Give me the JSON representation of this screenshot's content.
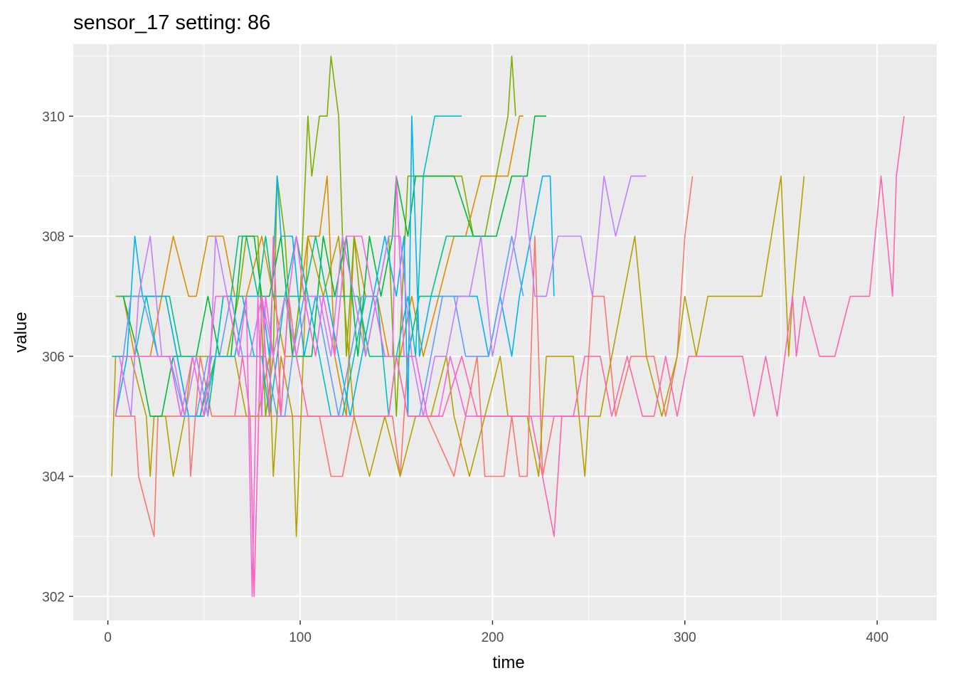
{
  "chart_data": {
    "type": "line",
    "title": "sensor_17 setting: 86",
    "xlabel": "time",
    "ylabel": "value",
    "xlim": [
      -18,
      431
    ],
    "ylim": [
      301.6,
      311.2
    ],
    "x_ticks": [
      0,
      100,
      200,
      300,
      400
    ],
    "y_ticks": [
      302,
      304,
      306,
      308,
      310
    ],
    "x_tick_labels": [
      "0",
      "100",
      "200",
      "300",
      "400"
    ],
    "y_tick_labels": [
      "302",
      "304",
      "306",
      "308",
      "310"
    ],
    "grid": true,
    "panel_background": "#ebebeb",
    "grid_color": "#ffffff",
    "legend": "none",
    "series": [
      {
        "color": "#F8766D",
        "x": [
          4,
          14,
          16,
          24,
          26,
          30,
          34,
          42,
          43,
          48,
          54,
          60,
          72,
          80,
          90,
          96,
          110,
          116,
          122,
          128,
          134,
          140,
          148,
          152,
          156,
          160,
          166,
          180,
          186,
          192,
          196,
          200,
          206,
          210,
          214,
          218,
          222,
          226,
          232,
          236,
          242,
          248,
          252,
          258,
          264,
          272,
          278,
          284,
          290,
          296,
          300,
          304
        ],
        "y": [
          305,
          305,
          304,
          303,
          305,
          305,
          305,
          305,
          304,
          306,
          305,
          305,
          305,
          305,
          305,
          305,
          305,
          304,
          304,
          305,
          305,
          305,
          305,
          304,
          306,
          306,
          305,
          304,
          305,
          306,
          304,
          304,
          304,
          305,
          304,
          304,
          308,
          304,
          305,
          305,
          305,
          305,
          307,
          307,
          305,
          306,
          306,
          306,
          305,
          306,
          308,
          309
        ]
      },
      {
        "color": "#DE8C00",
        "x": [
          4,
          8,
          14,
          22,
          28,
          34,
          42,
          46,
          52,
          60,
          66,
          72,
          80,
          86,
          92,
          96,
          104,
          110,
          114,
          118,
          124,
          128,
          134,
          140,
          146,
          152,
          158,
          164,
          172,
          180,
          186,
          194,
          202,
          208,
          214,
          216
        ],
        "y": [
          307,
          307,
          306,
          306,
          307,
          308,
          307,
          307,
          308,
          308,
          307,
          307,
          308,
          307,
          306,
          306,
          308,
          308,
          309,
          306,
          305,
          308,
          307,
          307,
          306,
          306,
          307,
          306,
          307,
          308,
          308,
          309,
          309,
          309,
          310,
          310
        ]
      },
      {
        "color": "#B79F00",
        "x": [
          2,
          4,
          6,
          12,
          20,
          22,
          24,
          26,
          30,
          34,
          40,
          44,
          50,
          58,
          66,
          72,
          78,
          84,
          86,
          90,
          96,
          98,
          104,
          112,
          120,
          128,
          136,
          144,
          152,
          160,
          168,
          176,
          180,
          188,
          196,
          204,
          208,
          212,
          218,
          224,
          228,
          236,
          242,
          248,
          250,
          256,
          262,
          268,
          274,
          280,
          288,
          296,
          300,
          306,
          312,
          320,
          330,
          340,
          350,
          354,
          356,
          362
        ],
        "y": [
          304,
          306,
          306,
          306,
          305,
          304,
          305,
          305,
          305,
          304,
          305,
          306,
          306,
          306,
          306,
          305,
          305,
          306,
          304,
          306,
          305,
          303,
          308,
          307,
          308,
          305,
          304,
          305,
          304,
          305,
          305,
          306,
          305,
          304,
          305,
          306,
          305,
          305,
          305,
          304,
          306,
          306,
          306,
          304,
          305,
          305,
          306,
          307,
          308,
          306,
          305,
          306,
          307,
          306,
          307,
          307,
          307,
          307,
          309,
          306,
          307,
          309
        ]
      },
      {
        "color": "#7CAE00",
        "x": [
          4,
          12,
          18,
          24,
          30,
          36,
          42,
          48,
          56,
          62,
          68,
          72,
          78,
          82,
          86,
          88,
          92,
          96,
          100,
          104,
          106,
          110,
          114,
          116,
          120,
          124,
          128,
          134,
          140,
          146,
          150,
          156,
          162,
          168,
          176,
          184,
          190,
          196,
          202,
          208,
          210,
          212
        ],
        "y": [
          307,
          307,
          307,
          307,
          307,
          306,
          305,
          305,
          306,
          306,
          307,
          308,
          308,
          305,
          306,
          309,
          308,
          306,
          307,
          310,
          309,
          310,
          310,
          311,
          310,
          306,
          308,
          306,
          307,
          308,
          305,
          309,
          309,
          309,
          309,
          309,
          308,
          308,
          309,
          310,
          311,
          310
        ]
      },
      {
        "color": "#00BA38",
        "x": [
          8,
          16,
          22,
          28,
          34,
          40,
          46,
          52,
          58,
          64,
          70,
          76,
          80,
          84,
          90,
          96,
          102,
          106,
          112,
          118,
          124,
          130,
          136,
          142,
          148,
          150,
          156,
          160,
          170,
          180,
          190,
          196,
          202,
          210,
          214,
          218,
          222,
          226,
          228
        ],
        "y": [
          307,
          306,
          305,
          305,
          306,
          306,
          306,
          307,
          306,
          306,
          308,
          308,
          307,
          307,
          308,
          306,
          306,
          306,
          308,
          307,
          308,
          306,
          308,
          307,
          308,
          309,
          308,
          309,
          309,
          309,
          308,
          308,
          308,
          309,
          309,
          309,
          310,
          310,
          310
        ]
      },
      {
        "color": "#00C08B",
        "x": [
          6,
          14,
          20,
          26,
          32,
          38,
          42,
          46,
          52,
          56,
          60,
          64,
          68,
          72,
          78,
          82,
          86,
          90,
          96,
          102,
          108,
          114,
          118,
          122,
          126,
          130,
          136,
          142,
          146,
          150,
          156,
          162,
          168,
          176,
          184,
          192,
          200
        ],
        "y": [
          307,
          307,
          307,
          307,
          307,
          306,
          306,
          306,
          305,
          306,
          307,
          307,
          308,
          308,
          307,
          308,
          307,
          307,
          307,
          307,
          308,
          307,
          307,
          307,
          307,
          307,
          306,
          306,
          306,
          306,
          306,
          307,
          307,
          308,
          308,
          308,
          308
        ]
      },
      {
        "color": "#00BFC4",
        "x": [
          2,
          8,
          14,
          20,
          26,
          32,
          38,
          44,
          50,
          56,
          60,
          66,
          70,
          76,
          80,
          84,
          88,
          92,
          98,
          104,
          110,
          116,
          122,
          128,
          134,
          140,
          146,
          150,
          156,
          160,
          164,
          170,
          176,
          180,
          184
        ],
        "y": [
          306,
          306,
          306,
          307,
          306,
          306,
          305,
          305,
          305,
          306,
          307,
          307,
          307,
          306,
          306,
          305,
          306,
          307,
          308,
          307,
          306,
          305,
          305,
          306,
          307,
          307,
          305,
          306,
          307,
          306,
          309,
          310,
          310,
          310,
          310
        ]
      },
      {
        "color": "#00B4F0",
        "x": [
          4,
          10,
          14,
          18,
          24,
          30,
          36,
          42,
          48,
          54,
          60,
          66,
          72,
          76,
          80,
          84,
          88,
          90,
          96,
          102,
          108,
          114,
          120,
          126,
          132,
          138,
          144,
          150,
          154,
          156,
          158,
          162,
          168,
          176,
          184,
          192,
          198,
          204,
          210,
          214,
          220,
          226,
          230,
          232
        ],
        "y": [
          305,
          306,
          308,
          307,
          307,
          307,
          306,
          305,
          305,
          306,
          306,
          306,
          307,
          307,
          307,
          306,
          309,
          308,
          308,
          306,
          307,
          307,
          306,
          305,
          306,
          307,
          308,
          307,
          308,
          305,
          310,
          306,
          307,
          307,
          307,
          307,
          306,
          307,
          306,
          307,
          308,
          309,
          309,
          307
        ]
      },
      {
        "color": "#619CFF",
        "x": [
          4,
          12,
          18,
          26,
          32,
          40,
          46,
          52,
          58,
          64,
          70,
          76,
          82,
          88,
          92,
          96,
          102,
          108,
          114,
          120,
          126,
          132,
          138,
          144,
          150,
          156,
          162,
          168,
          174,
          180,
          186,
          192,
          198,
          204,
          210,
          216
        ],
        "y": [
          305,
          307,
          307,
          306,
          306,
          305,
          305,
          306,
          306,
          307,
          306,
          306,
          306,
          305,
          305,
          306,
          307,
          307,
          306,
          305,
          306,
          307,
          307,
          306,
          306,
          305,
          305,
          306,
          307,
          307,
          306,
          306,
          306,
          307,
          308,
          307
        ]
      },
      {
        "color": "#C77CFF",
        "x": [
          6,
          12,
          16,
          22,
          28,
          34,
          40,
          46,
          52,
          56,
          62,
          68,
          74,
          80,
          86,
          92,
          98,
          104,
          110,
          116,
          122,
          128,
          134,
          140,
          146,
          152,
          158,
          164,
          170,
          176,
          182,
          188,
          194,
          200,
          206,
          212,
          216,
          222,
          228,
          234,
          240,
          246,
          252,
          258,
          264,
          272,
          280
        ],
        "y": [
          306,
          305,
          307,
          308,
          306,
          306,
          305,
          306,
          305,
          308,
          307,
          306,
          306,
          307,
          306,
          307,
          306,
          307,
          307,
          306,
          308,
          307,
          306,
          307,
          308,
          308,
          306,
          305,
          306,
          306,
          307,
          307,
          308,
          306,
          307,
          308,
          309,
          307,
          307,
          308,
          308,
          308,
          307,
          309,
          308,
          309,
          309
        ]
      },
      {
        "color": "#F564E3",
        "x": [
          4,
          8,
          14,
          20,
          26,
          32,
          38,
          44,
          50,
          56,
          62,
          68,
          72,
          75,
          78,
          80,
          82,
          86,
          90,
          94,
          98,
          102,
          108,
          112,
          118,
          124,
          128,
          132,
          138,
          144,
          148,
          150,
          154,
          160,
          166,
          172,
          178,
          186,
          194,
          200,
          208,
          216,
          222,
          230,
          236,
          242,
          246,
          250
        ],
        "y": [
          305,
          306,
          306,
          306,
          306,
          306,
          305,
          306,
          305,
          307,
          307,
          306,
          307,
          302,
          307,
          305,
          307,
          306,
          305,
          307,
          308,
          307,
          306,
          307,
          306,
          308,
          308,
          308,
          307,
          306,
          306,
          309,
          306,
          306,
          305,
          305,
          306,
          305,
          305,
          305,
          305,
          305,
          305,
          305,
          305,
          305,
          305,
          305
        ]
      },
      {
        "color": "#FF64B0",
        "x": [
          66,
          70,
          74,
          76,
          80,
          84,
          86,
          90,
          94,
          98,
          104,
          110,
          116,
          122,
          128,
          134,
          140,
          146,
          150,
          156,
          164,
          174,
          184,
          192,
          200,
          206,
          212,
          220,
          226,
          232,
          236,
          242,
          248,
          256,
          262,
          270,
          278,
          284,
          290,
          296,
          302,
          308,
          316,
          322,
          330,
          336,
          342,
          348,
          352,
          356,
          358,
          362,
          370,
          378,
          386,
          396,
          402,
          408,
          410,
          414
        ],
        "y": [
          305,
          306,
          305,
          302,
          307,
          305,
          308,
          305,
          307,
          306,
          305,
          305,
          305,
          305,
          305,
          305,
          305,
          305,
          306,
          305,
          305,
          305,
          306,
          305,
          305,
          305,
          305,
          305,
          304,
          303,
          305,
          305,
          306,
          306,
          305,
          306,
          305,
          305,
          306,
          305,
          306,
          306,
          306,
          306,
          306,
          305,
          306,
          305,
          306,
          307,
          306,
          307,
          306,
          306,
          307,
          307,
          309,
          307,
          309,
          310
        ]
      }
    ]
  }
}
